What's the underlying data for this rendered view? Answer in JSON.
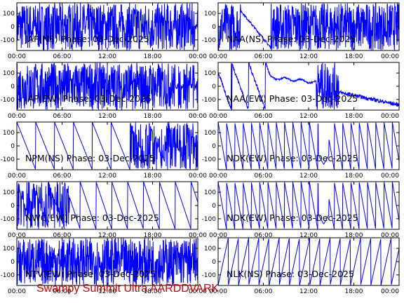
{
  "chart_data": [
    {
      "type": "line",
      "title": "JAP(NS) Phase: 03-Dec-2025",
      "x_ticks": [
        "00:00",
        "06:00",
        "12:00",
        "18:00",
        "00:00"
      ],
      "y_ticks": [
        "100",
        "0",
        "-100"
      ],
      "ylim": [
        -180,
        180
      ],
      "xlim": [
        0,
        24
      ],
      "color": "#0000ff",
      "mode": "dense",
      "gaps": [
        [
          23.6,
          23.9
        ]
      ]
    },
    {
      "type": "line",
      "title": "NAA(NS) Phase: 03-Dec-2025",
      "x_ticks": [
        "00:00",
        "06:00",
        "12:00",
        "18:00",
        "00:00"
      ],
      "y_ticks": [
        "100",
        "0",
        "-100"
      ],
      "ylim": [
        -180,
        180
      ],
      "xlim": [
        0,
        24
      ],
      "color": "#0000ff",
      "mode": "naans"
    },
    {
      "type": "line",
      "title": "JAP(EW) Phase: 03-Dec-2025",
      "x_ticks": [
        "00:00",
        "06:00",
        "12:00",
        "18:00",
        "00:00"
      ],
      "y_ticks": [
        "100",
        "0",
        "-100"
      ],
      "ylim": [
        -180,
        180
      ],
      "xlim": [
        0,
        24
      ],
      "color": "#0000ff",
      "mode": "dense",
      "gaps": [
        [
          21.0,
          21.4
        ],
        [
          21.8,
          22.1
        ],
        [
          23.1,
          23.3
        ],
        [
          23.6,
          23.8
        ]
      ]
    },
    {
      "type": "line",
      "title": "NAA(EW) Phase: 03-Dec-2025",
      "x_ticks": [
        "00:00",
        "06:00",
        "12:00",
        "18:00",
        "00:00"
      ],
      "y_ticks": [
        "100",
        "0",
        "-100"
      ],
      "ylim": [
        -180,
        180
      ],
      "xlim": [
        0,
        24
      ],
      "color": "#0000ff",
      "mode": "naaew"
    },
    {
      "type": "line",
      "title": "NPM(NS) Phase: 03-Dec-2025",
      "x_ticks": [
        "00:00",
        "06:00",
        "12:00",
        "18:00",
        "00:00"
      ],
      "y_ticks": [
        "100",
        "0",
        "-100"
      ],
      "ylim": [
        -180,
        180
      ],
      "xlim": [
        0,
        24
      ],
      "color": "#0000ff",
      "mode": "ramp",
      "period": 2.5,
      "direction": -1,
      "noise_from": 15,
      "noise_to": 24
    },
    {
      "type": "line",
      "title": "NDK(EW) Phase: 03-Dec-2025",
      "x_ticks": [
        "00:00",
        "06:00",
        "12:00",
        "18:00",
        "00:00"
      ],
      "y_ticks": [
        "100",
        "0",
        "-100"
      ],
      "ylim": [
        -180,
        180
      ],
      "xlim": [
        0,
        24
      ],
      "color": "#0000ff",
      "mode": "ramp",
      "period": 1.1,
      "direction": -1,
      "dip_at": 14.0
    },
    {
      "type": "line",
      "title": "NWC(EW) Phase: 03-Dec-2025",
      "x_ticks": [
        "00:00",
        "06:00",
        "12:00",
        "18:00",
        "00:00"
      ],
      "y_ticks": [
        "100",
        "0",
        "-100"
      ],
      "ylim": [
        -180,
        180
      ],
      "xlim": [
        0,
        24
      ],
      "color": "#0000ff",
      "mode": "ramp",
      "period": 2.1,
      "direction": -1,
      "noise_from": 0,
      "noise_to": 7
    },
    {
      "type": "line",
      "title": "NDK(EW) Phase: 03-Dec-2025",
      "x_ticks": [
        "00:00",
        "06:00",
        "12:00",
        "18:00",
        "00:00"
      ],
      "y_ticks": [
        "100",
        "0",
        "-100"
      ],
      "ylim": [
        -180,
        180
      ],
      "xlim": [
        0,
        24
      ],
      "color": "#0000ff",
      "mode": "ramp",
      "period": 1.1,
      "direction": -1,
      "dip_at": 14.0
    },
    {
      "type": "line",
      "title": "NTV(EW) Phase: 03-Dec-2025",
      "x_ticks": [
        "00:00",
        "06:00",
        "12:00",
        "18:00",
        "00:00"
      ],
      "y_ticks": [
        "100",
        "0",
        "-100"
      ],
      "ylim": [
        -180,
        180
      ],
      "xlim": [
        0,
        24
      ],
      "color": "#0000ff",
      "mode": "noise"
    },
    {
      "type": "line",
      "title": "NLK(NS) Phase: 03-Dec-2025",
      "x_ticks": [
        "00:00",
        "06:00",
        "12:00",
        "18:00",
        "00:00"
      ],
      "y_ticks": [
        "100",
        "0",
        "-100"
      ],
      "ylim": [
        -180,
        180
      ],
      "xlim": [
        0,
        24
      ],
      "color": "#0000ff",
      "mode": "ramp",
      "period": 1.35,
      "direction": 1
    }
  ],
  "footer": {
    "credit": "Swampy Summit Ultra AARDDVARK"
  }
}
